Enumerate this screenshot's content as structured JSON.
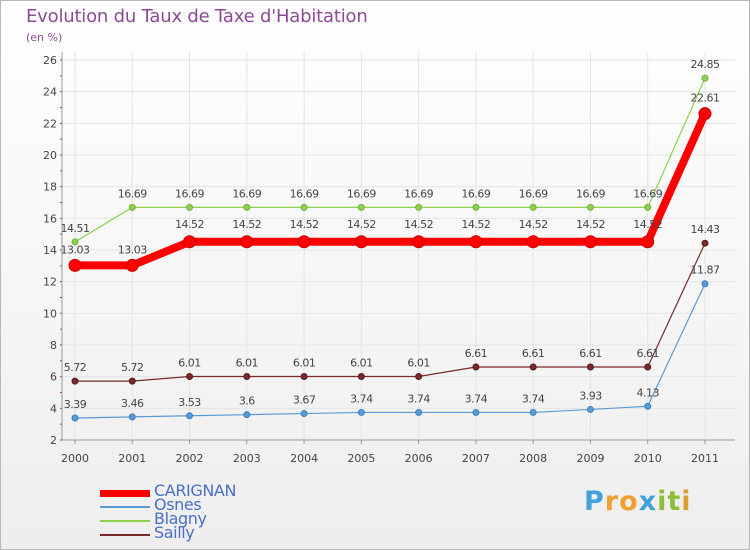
{
  "chart_data": {
    "type": "line",
    "title": "Evolution du Taux de Taxe d'Habitation",
    "subtitle": "(en %)",
    "xlabel": "",
    "ylabel": "",
    "categories": [
      "2000",
      "2001",
      "2002",
      "2003",
      "2004",
      "2005",
      "2006",
      "2007",
      "2008",
      "2009",
      "2010",
      "2011"
    ],
    "ylim": [
      2,
      26
    ],
    "yticks": [
      "2",
      "4",
      "6",
      "8",
      "10",
      "12",
      "14",
      "16",
      "18",
      "20",
      "22",
      "24",
      "26"
    ],
    "grid": true,
    "series": [
      {
        "name": "CARIGNAN",
        "color": "#ff0000",
        "values": [
          13.03,
          13.03,
          14.52,
          14.52,
          14.52,
          14.52,
          14.52,
          14.52,
          14.52,
          14.52,
          14.52,
          22.61
        ],
        "labels": [
          "13.03",
          "13.03",
          "14.52",
          "14.52",
          "14.52",
          "14.52",
          "14.52",
          "14.52",
          "14.52",
          "14.52",
          "14.52",
          "22.61"
        ]
      },
      {
        "name": "Osnes",
        "color": "#5b9bd5",
        "values": [
          3.39,
          3.46,
          3.53,
          3.6,
          3.67,
          3.74,
          3.74,
          3.74,
          3.74,
          3.93,
          4.13,
          11.87
        ],
        "labels": [
          "3.39",
          "3.46",
          "3.53",
          "3.6",
          "3.67",
          "3.74",
          "3.74",
          "3.74",
          "3.74",
          "3.93",
          "4.13",
          "11.87"
        ]
      },
      {
        "name": "Blagny",
        "color": "#8fd14f",
        "values": [
          14.51,
          16.69,
          16.69,
          16.69,
          16.69,
          16.69,
          16.69,
          16.69,
          16.69,
          16.69,
          16.69,
          24.85
        ],
        "labels": [
          "14.51",
          "16.69",
          "16.69",
          "16.69",
          "16.69",
          "16.69",
          "16.69",
          "16.69",
          "16.69",
          "16.69",
          "16.69",
          "24.85"
        ]
      },
      {
        "name": "Sailly",
        "color": "#7a2a2a",
        "values": [
          5.72,
          5.72,
          6.01,
          6.01,
          6.01,
          6.01,
          6.01,
          6.61,
          6.61,
          6.61,
          6.61,
          14.43
        ],
        "labels": [
          "5.72",
          "5.72",
          "6.01",
          "6.01",
          "6.01",
          "6.01",
          "6.01",
          "6.61",
          "6.61",
          "6.61",
          "6.61",
          "14.43"
        ]
      }
    ]
  },
  "logo": {
    "letters": [
      "P",
      "r",
      "o",
      "x",
      "i",
      "t",
      "i"
    ],
    "colors": [
      "#3fa3d9",
      "#f0a030",
      "#f0a030",
      "#3fa3d9",
      "#8fbf3a",
      "#8fbf3a",
      "#d9a030"
    ]
  }
}
